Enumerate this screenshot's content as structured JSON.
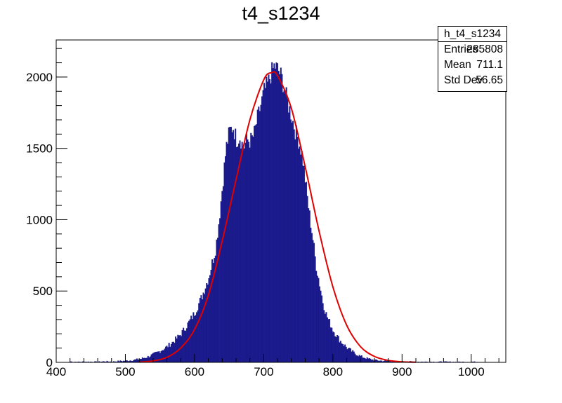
{
  "chart_data": {
    "type": "bar",
    "title": "t4_s1234",
    "xlabel": "",
    "ylabel": "",
    "xlim": [
      400,
      1050
    ],
    "ylim": [
      0,
      2260
    ],
    "x_ticks": [
      "400",
      "500",
      "600",
      "700",
      "800",
      "900",
      "1000"
    ],
    "y_ticks": [
      "0",
      "500",
      "1000",
      "1500",
      "2000"
    ],
    "grid": false,
    "bar_color": "#1a1a8c",
    "fit_color": "#e00000",
    "series": [
      {
        "values": [
          [
            420,
            5
          ],
          [
            430,
            2
          ],
          [
            440,
            4
          ],
          [
            450,
            3
          ],
          [
            460,
            3
          ],
          [
            470,
            6
          ],
          [
            480,
            4
          ],
          [
            490,
            8
          ],
          [
            500,
            10
          ],
          [
            510,
            15
          ],
          [
            520,
            22
          ],
          [
            530,
            35
          ],
          [
            540,
            55
          ],
          [
            550,
            80
          ],
          [
            560,
            110
          ],
          [
            570,
            150
          ],
          [
            580,
            200
          ],
          [
            590,
            270
          ],
          [
            600,
            350
          ],
          [
            610,
            460
          ],
          [
            620,
            600
          ],
          [
            630,
            800
          ],
          [
            635,
            1000
          ],
          [
            640,
            1250
          ],
          [
            645,
            1500
          ],
          [
            650,
            1620
          ],
          [
            655,
            1650
          ],
          [
            660,
            1560
          ],
          [
            665,
            1580
          ],
          [
            670,
            1500
          ],
          [
            675,
            1560
          ],
          [
            680,
            1550
          ],
          [
            685,
            1590
          ],
          [
            690,
            1700
          ],
          [
            695,
            1800
          ],
          [
            700,
            1900
          ],
          [
            705,
            1950
          ],
          [
            710,
            2020
          ],
          [
            715,
            2080
          ],
          [
            720,
            2050
          ],
          [
            725,
            2000
          ],
          [
            730,
            1900
          ],
          [
            735,
            1800
          ],
          [
            740,
            1720
          ],
          [
            745,
            1620
          ],
          [
            750,
            1550
          ],
          [
            755,
            1450
          ],
          [
            760,
            1250
          ],
          [
            765,
            1050
          ],
          [
            770,
            880
          ],
          [
            775,
            680
          ],
          [
            780,
            550
          ],
          [
            785,
            420
          ],
          [
            790,
            330
          ],
          [
            800,
            220
          ],
          [
            810,
            150
          ],
          [
            820,
            100
          ],
          [
            830,
            65
          ],
          [
            840,
            40
          ],
          [
            850,
            25
          ],
          [
            860,
            15
          ],
          [
            870,
            10
          ],
          [
            880,
            8
          ],
          [
            890,
            6
          ],
          [
            900,
            5
          ],
          [
            920,
            4
          ],
          [
            940,
            3
          ],
          [
            960,
            3
          ],
          [
            980,
            2
          ],
          [
            1000,
            3
          ],
          [
            1020,
            2
          ]
        ]
      },
      {
        "type": "line",
        "values": [
          [
            520,
            2
          ],
          [
            540,
            10
          ],
          [
            560,
            35
          ],
          [
            580,
            100
          ],
          [
            600,
            230
          ],
          [
            620,
            470
          ],
          [
            640,
            850
          ],
          [
            660,
            1280
          ],
          [
            680,
            1700
          ],
          [
            700,
            1980
          ],
          [
            711,
            2030
          ],
          [
            720,
            2010
          ],
          [
            740,
            1780
          ],
          [
            760,
            1370
          ],
          [
            780,
            920
          ],
          [
            800,
            530
          ],
          [
            820,
            260
          ],
          [
            840,
            110
          ],
          [
            860,
            42
          ],
          [
            880,
            14
          ],
          [
            900,
            4
          ],
          [
            920,
            1
          ]
        ]
      }
    ]
  },
  "stats_box": {
    "name": "h_t4_s1234",
    "rows": [
      {
        "label": "Entries",
        "value": "285808"
      },
      {
        "label": "Mean",
        "value": "711.1"
      },
      {
        "label": "Std Dev",
        "value": "56.65"
      }
    ]
  }
}
